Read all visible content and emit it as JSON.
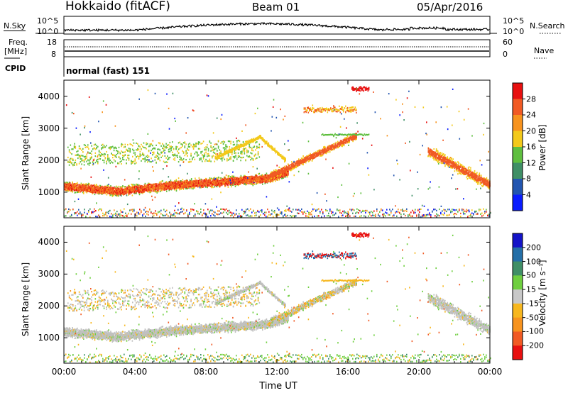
{
  "header": {
    "station": "Hokkaido (fitACF)",
    "beam": "Beam 01",
    "date": "05/Apr/2016"
  },
  "panels": {
    "nsky": {
      "label": "N.Sky",
      "ticks": [
        "10^5",
        "10^0"
      ]
    },
    "nsearch": {
      "label": "N.Search",
      "ticks": [
        "10^5",
        "10^0"
      ]
    },
    "freq": {
      "label": "Freq.",
      "unit": "[MHz]",
      "ticks": [
        "18",
        "8"
      ]
    },
    "nave": {
      "label": "Nave",
      "ticks": [
        "60",
        "0"
      ]
    },
    "cpid": {
      "label": "CPID",
      "text": "normal (fast) 151"
    }
  },
  "chart_data": [
    {
      "type": "heatmap",
      "name": "power",
      "xlabel": "",
      "ylabel": "Slant Range [km]",
      "xlim": [
        0,
        24
      ],
      "ylim": [
        200,
        4500
      ],
      "yticks": [
        "1000",
        "2000",
        "3000",
        "4000"
      ],
      "colorbar": {
        "label": "Power [dB]",
        "ticks": [
          "4",
          "8",
          "12",
          "16",
          "20",
          "24",
          "28"
        ],
        "colors": [
          "#0a1cff",
          "#2255b0",
          "#3f8f66",
          "#5fbf3f",
          "#f3c91a",
          "#f7931e",
          "#f15a24",
          "#e81010"
        ]
      },
      "features": [
        {
          "name": "main band",
          "x": [
            0,
            12.6
          ],
          "y": [
            950,
            1500
          ]
        },
        {
          "name": "upper band",
          "x": [
            0,
            11
          ],
          "y": [
            1800,
            2600
          ]
        },
        {
          "name": "rising band",
          "x": [
            10.5,
            16.5
          ],
          "y": [
            1100,
            2900
          ]
        },
        {
          "name": "far echoes",
          "x": [
            13.5,
            17.2
          ],
          "y": [
            3400,
            4400
          ]
        },
        {
          "name": "evening band",
          "x": [
            20.5,
            24
          ],
          "y": [
            900,
            2600
          ]
        }
      ]
    },
    {
      "type": "heatmap",
      "name": "velocity",
      "xlabel": "Time UT",
      "ylabel": "Slant Range [km]",
      "xlim": [
        0,
        24
      ],
      "ylim": [
        200,
        4500
      ],
      "xticks": [
        "00:00",
        "04:00",
        "08:00",
        "12:00",
        "16:00",
        "20:00",
        "00:00"
      ],
      "yticks": [
        "1000",
        "2000",
        "3000",
        "4000"
      ],
      "colorbar": {
        "label": "Velocity [m s⁻¹]",
        "ticks": [
          "200",
          "100",
          "50",
          "15",
          "-15",
          "-50",
          "-100",
          "-200"
        ],
        "colors": [
          "#1414c8",
          "#246fa8",
          "#3f8f66",
          "#6fcf3f",
          "#c8c8c8",
          "#f7b71e",
          "#f7931e",
          "#f15a24",
          "#e81010"
        ]
      }
    }
  ],
  "colors": {
    "ground_scatter": "#c0c0c0",
    "axis": "#000000"
  }
}
